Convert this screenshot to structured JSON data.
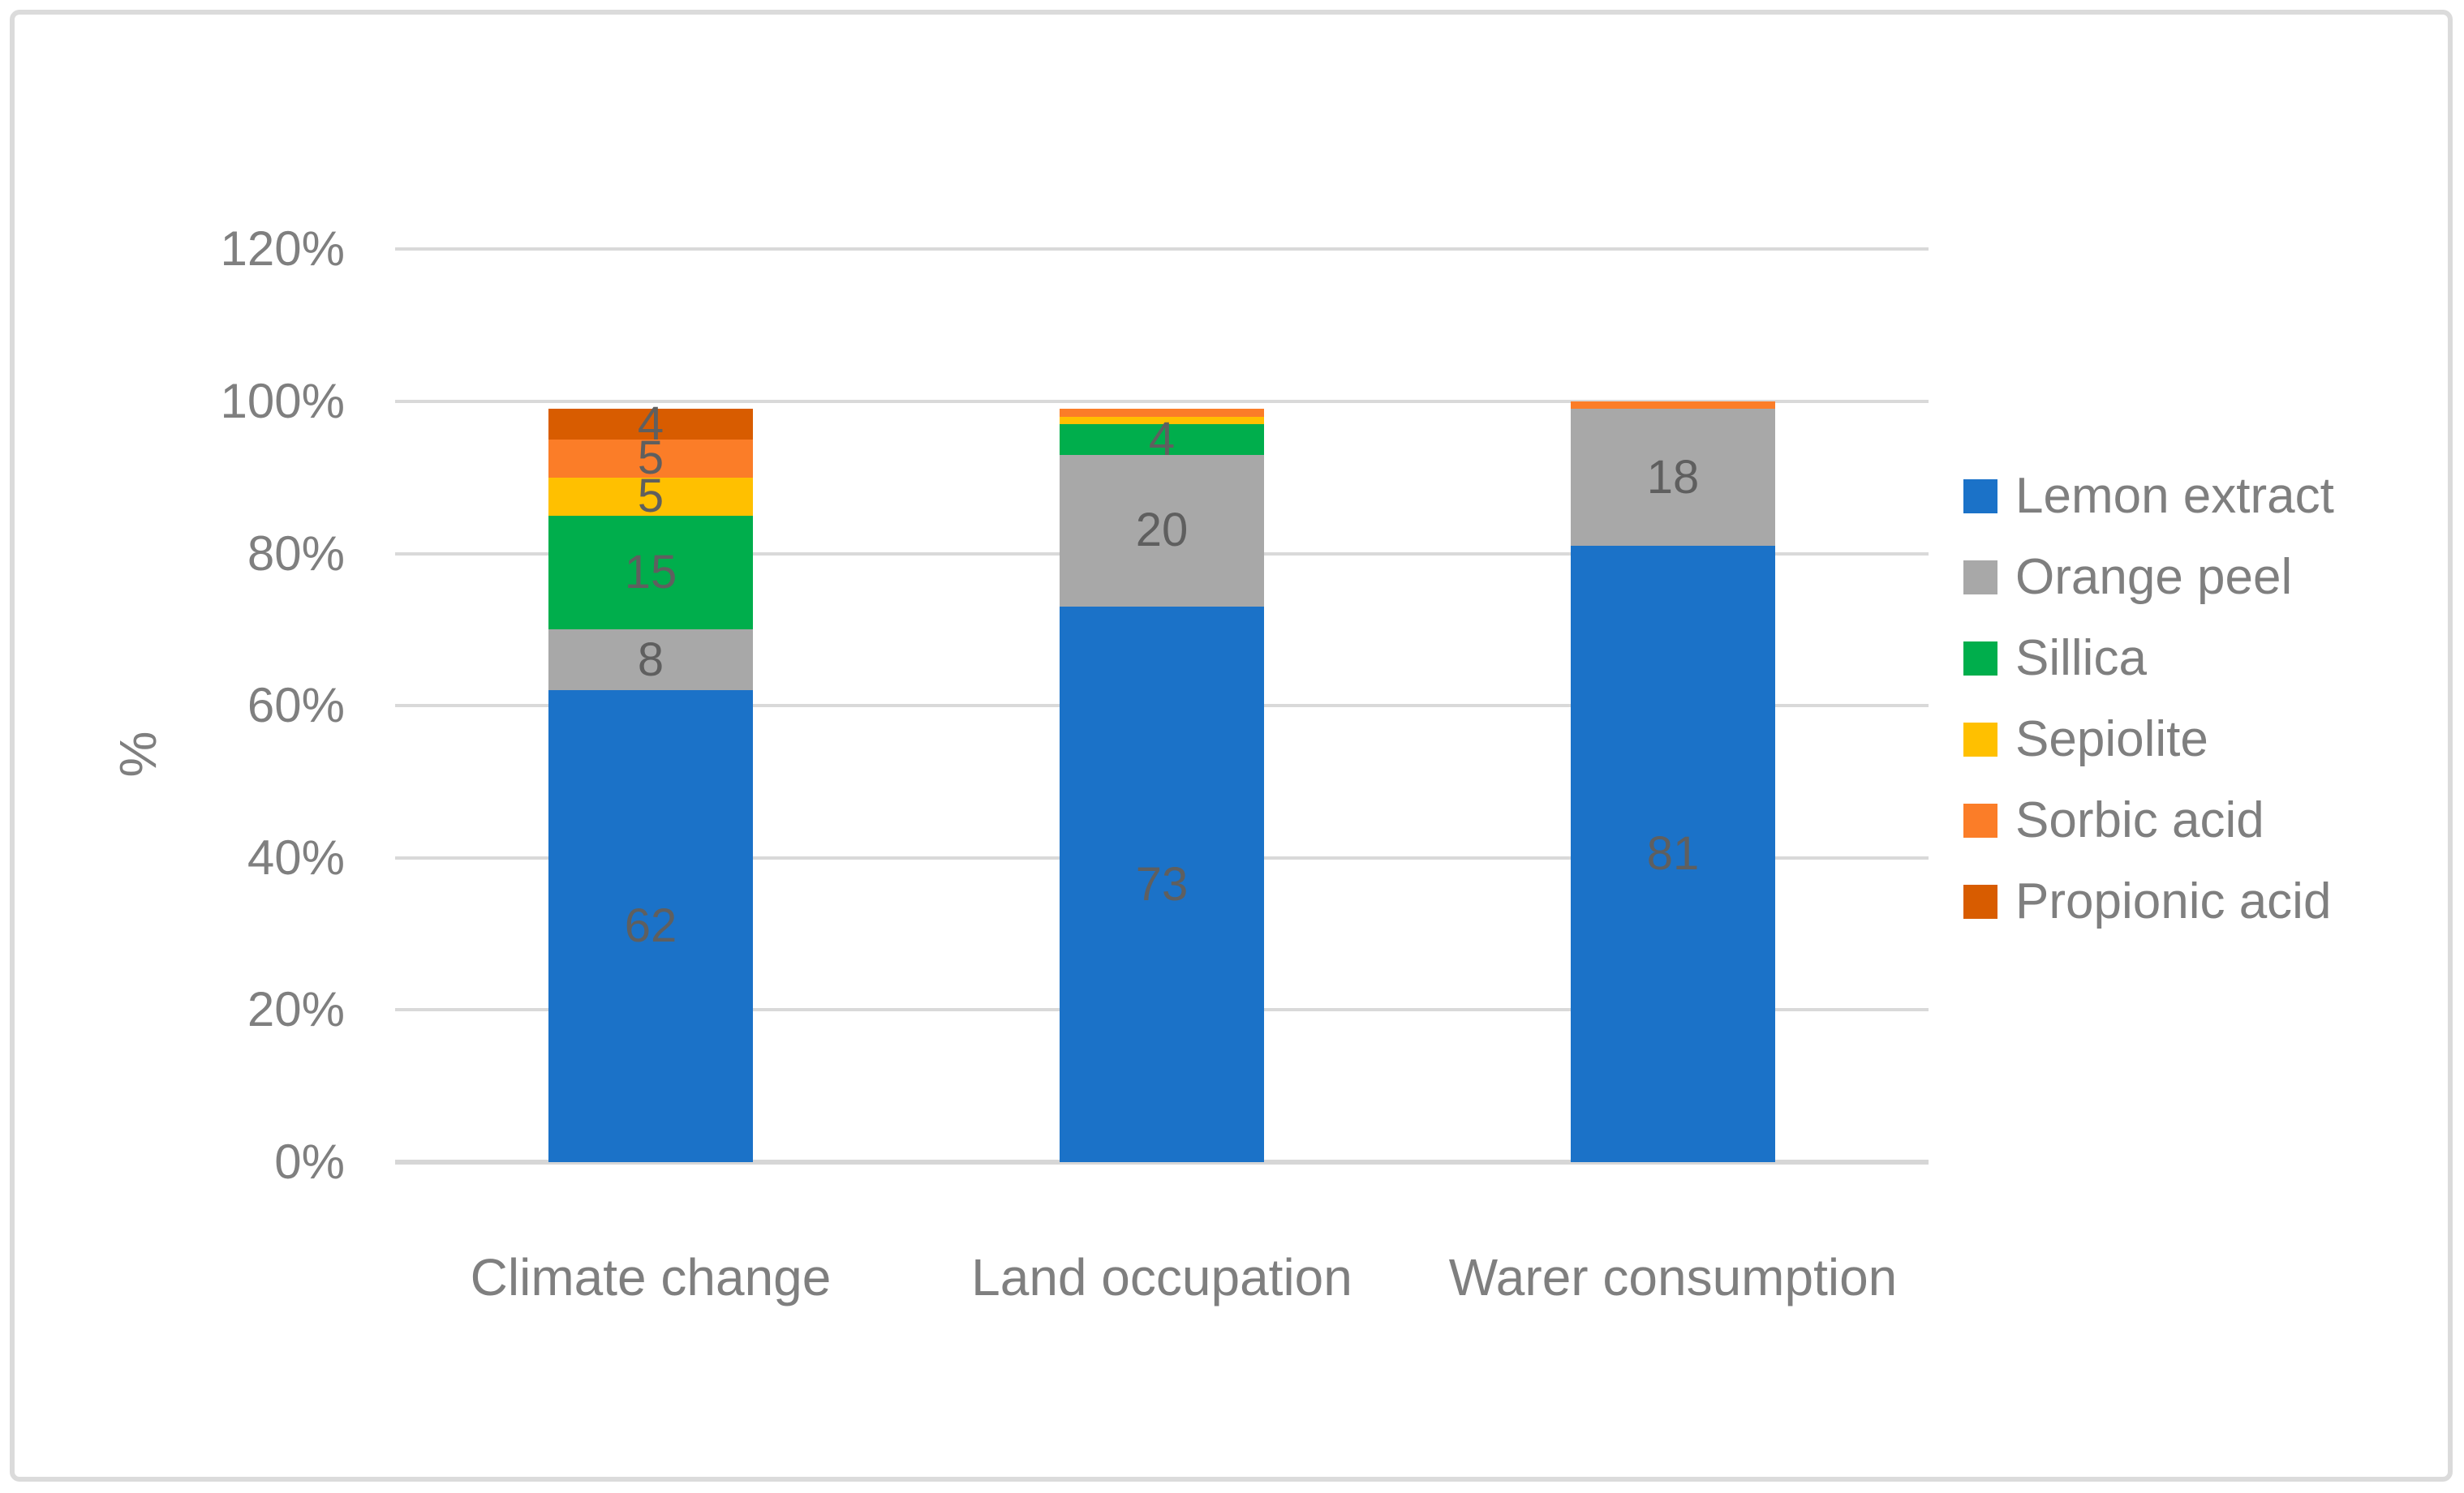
{
  "figure": {
    "background": "#FFFFFF",
    "border_color": "#DBDBDB"
  },
  "chart_data": {
    "type": "bar",
    "stacked": true,
    "title": "",
    "xlabel": "",
    "ylabel": "%",
    "categories": [
      "Climate change",
      "Land occupation",
      "Warer consumption"
    ],
    "series": [
      {
        "name": "Lemon extract",
        "color": "#1B72C8",
        "values": [
          62,
          73,
          81
        ]
      },
      {
        "name": "Orange peel",
        "color": "#A8A8A8",
        "values": [
          8,
          20,
          18
        ]
      },
      {
        "name": "Sillica",
        "color": "#00AE4C",
        "values": [
          15,
          4,
          0
        ]
      },
      {
        "name": "Sepiolite",
        "color": "#FFC000",
        "values": [
          5,
          1,
          0
        ]
      },
      {
        "name": "Sorbic acid",
        "color": "#FB7D28",
        "values": [
          5,
          1,
          1
        ]
      },
      {
        "name": "Propionic acid",
        "color": "#D85C00",
        "values": [
          4,
          0,
          0
        ]
      }
    ],
    "data_labels": {
      "Climate change": {
        "Lemon extract": "62",
        "Orange peel": "8",
        "Sillica": "15",
        "Sepiolite": "5",
        "Sorbic acid": "5",
        "Propionic acid": "4"
      },
      "Land occupation": {
        "Lemon extract": "73",
        "Orange peel": "20",
        "Sillica": "4"
      },
      "Warer consumption": {
        "Lemon extract": "81",
        "Orange peel": "18"
      }
    },
    "data_label_min": 2,
    "y_ticks": [
      {
        "v": 0,
        "label": "0%"
      },
      {
        "v": 20,
        "label": "20%"
      },
      {
        "v": 40,
        "label": "40%"
      },
      {
        "v": 60,
        "label": "60%"
      },
      {
        "v": 80,
        "label": "80%"
      },
      {
        "v": 100,
        "label": "100%"
      },
      {
        "v": 120,
        "label": "120%"
      }
    ],
    "ylim": [
      0,
      120
    ],
    "grid": true,
    "legend_position": "right",
    "colors": {
      "gridline": "#D9D9D9",
      "axis_line": "#D6D6D6",
      "axis_text": "#7F7F7F",
      "data_label_text": "#5F5F5F",
      "legend_text": "#7F7F7F"
    }
  }
}
